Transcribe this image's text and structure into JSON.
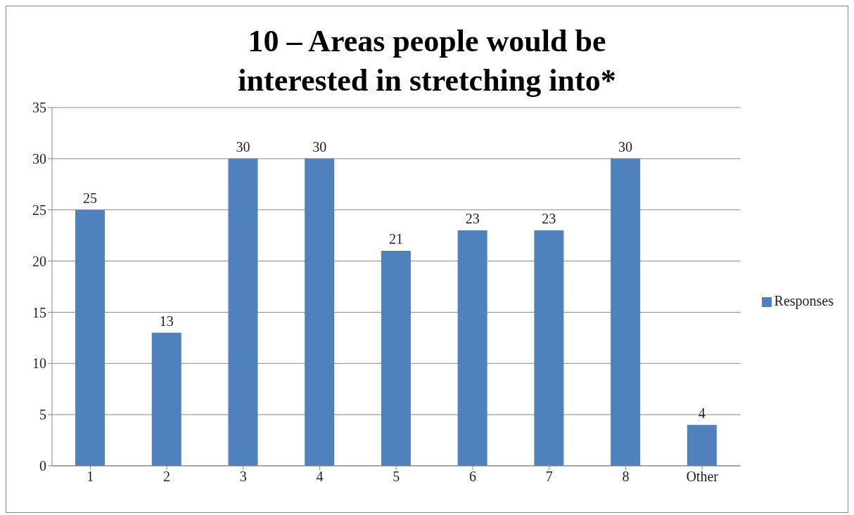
{
  "chart_data": {
    "type": "bar",
    "title": "10 – Areas people would be interested in stretching into*",
    "categories": [
      "1",
      "2",
      "3",
      "4",
      "5",
      "6",
      "7",
      "8",
      "Other"
    ],
    "series": [
      {
        "name": "Responses",
        "color": "#4f81bd",
        "values": [
          25,
          13,
          30,
          30,
          21,
          23,
          23,
          30,
          4
        ]
      }
    ],
    "ylim": [
      0,
      35
    ],
    "yticks": [
      0,
      5,
      10,
      15,
      20,
      25,
      30,
      35
    ],
    "grid": "y",
    "legend": "right",
    "data_labels": true
  }
}
